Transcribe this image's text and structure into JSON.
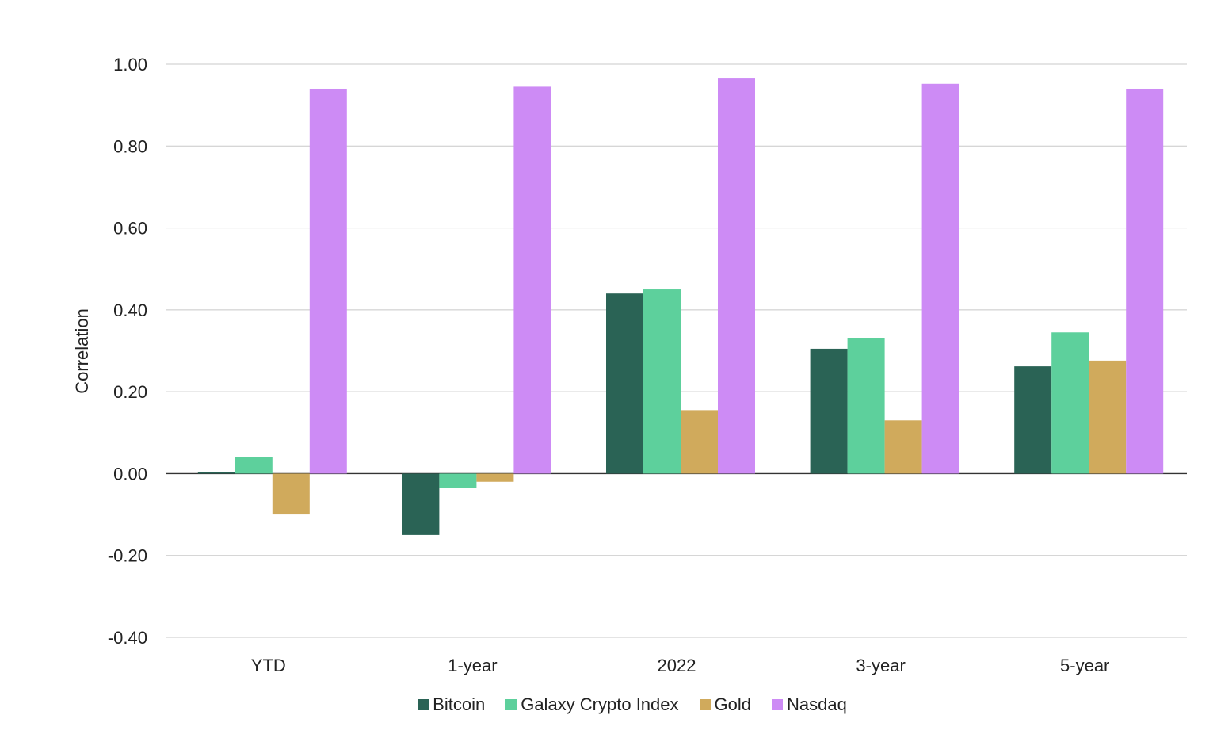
{
  "chart_data": {
    "type": "bar",
    "categories": [
      "YTD",
      "1-year",
      "2022",
      "3-year",
      "5-year"
    ],
    "series": [
      {
        "name": "Bitcoin",
        "color": "#2a6355",
        "values": [
          0.003,
          -0.15,
          0.44,
          0.305,
          0.262
        ]
      },
      {
        "name": "Galaxy Crypto Index",
        "color": "#5dd09c",
        "values": [
          0.04,
          -0.035,
          0.45,
          0.33,
          0.345
        ]
      },
      {
        "name": "Gold",
        "color": "#d0aa5c",
        "values": [
          -0.1,
          -0.02,
          0.155,
          0.13,
          0.276
        ]
      },
      {
        "name": "Nasdaq",
        "color": "#cd8bf5",
        "values": [
          0.94,
          0.945,
          0.965,
          0.952,
          0.94
        ]
      }
    ],
    "ylabel": "Correlation",
    "xlabel": "",
    "ylim": [
      -0.4,
      1.0
    ],
    "yticks": [
      "1.00",
      "0.80",
      "0.60",
      "0.40",
      "0.20",
      "0.00",
      "-0.20",
      "-0.40"
    ],
    "grid": true,
    "legend_position": "bottom"
  }
}
